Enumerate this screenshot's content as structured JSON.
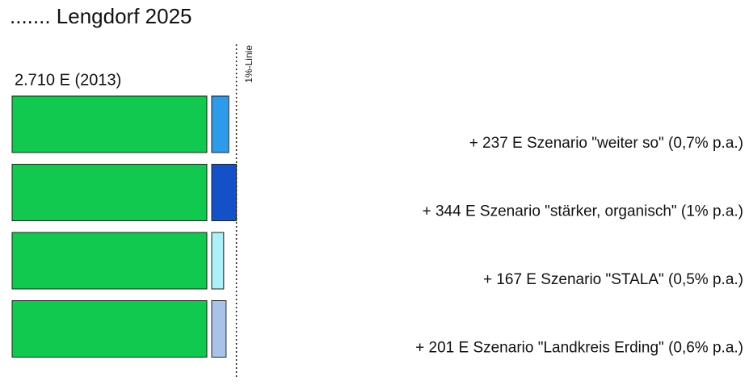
{
  "chart_data": {
    "type": "bar",
    "title": "....... Lengdorf 2025",
    "base_value": 2710,
    "base_label": "2.710 E  (2013)",
    "base_color": "#12c94f",
    "values": [
      237,
      344,
      167,
      201
    ],
    "value_labels": [
      "+ 237 E  Szenario \"weiter so\"  (0,7% p.a.)",
      "+ 344 E  Szenario \"stärker, organisch\"  (1% p.a.)",
      "+ 167 E  Szenario \"STALA\"  (0,5% p.a.)",
      "+ 201 E  Szenario \"Landkreis Erding\"  (0,6% p.a.)"
    ],
    "colors": [
      "#2e9bea",
      "#1450c8",
      "#aef0f8",
      "#a9c3e8"
    ],
    "reference_line": {
      "value": 3054,
      "label": "1%-Linie"
    }
  }
}
